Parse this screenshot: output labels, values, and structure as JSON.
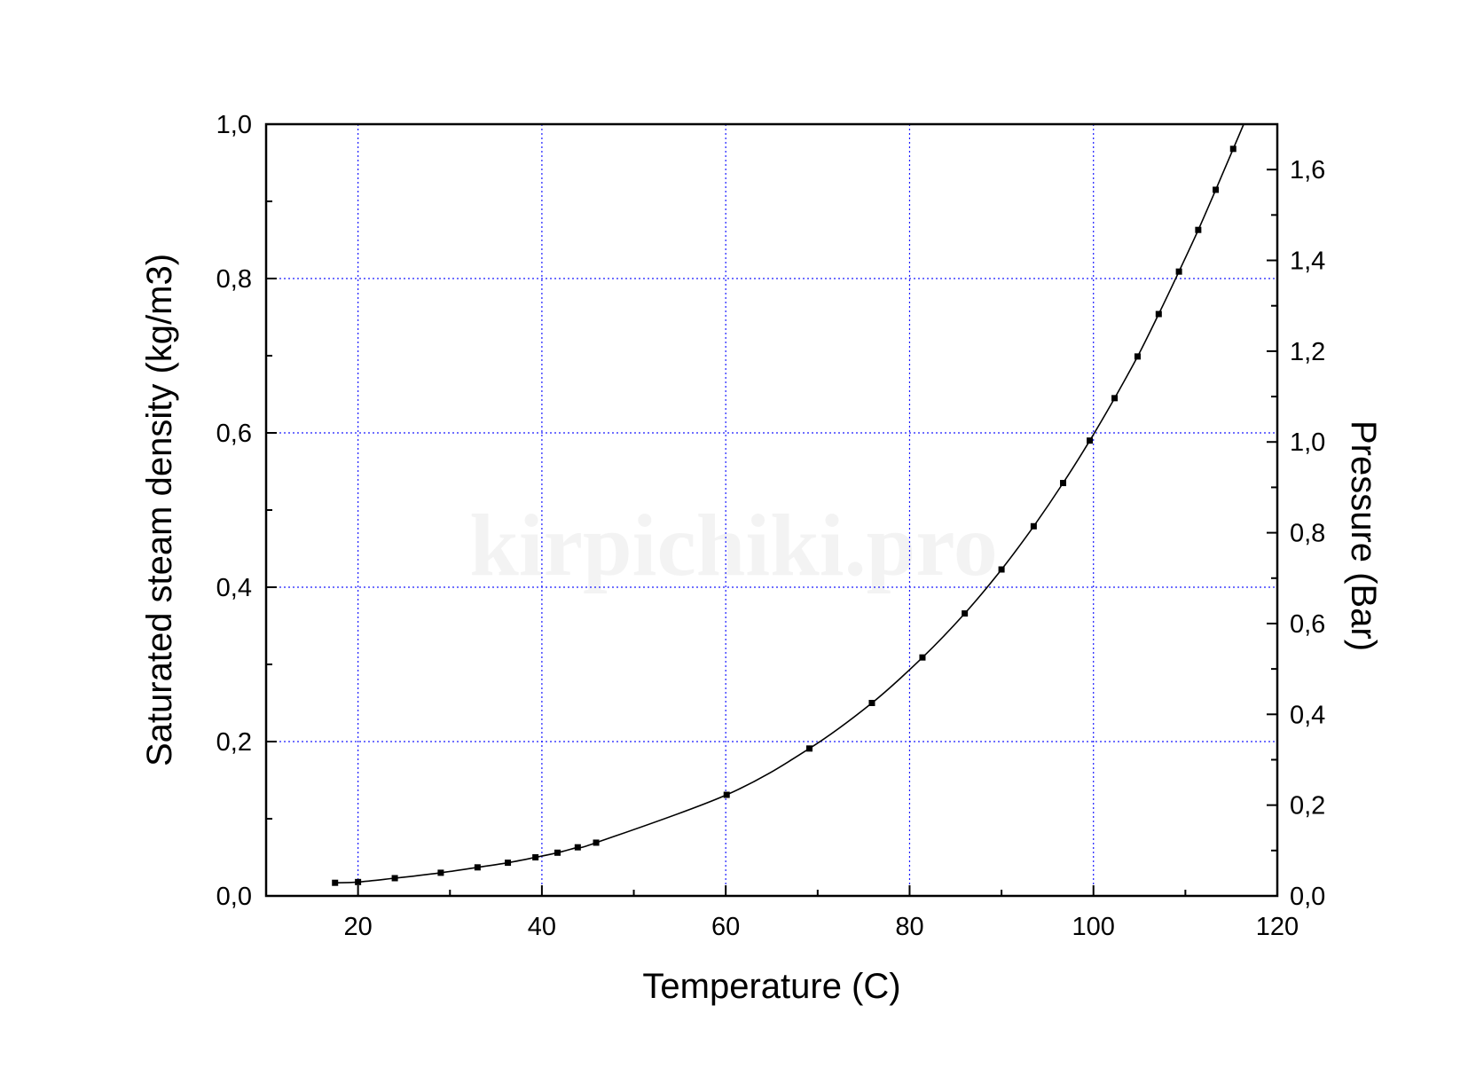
{
  "watermark": "kirpichiki.pro",
  "chart_data": {
    "type": "line",
    "xlabel": "Temperature (C)",
    "ylabel": "Saturated steam density (kg/m3)",
    "y2label": "Pressure (Bar)",
    "xlim": [
      10,
      120
    ],
    "ylim": [
      0,
      1.0
    ],
    "y2lim": [
      0,
      1.7
    ],
    "xticks": [
      20,
      40,
      60,
      80,
      100,
      120
    ],
    "yticks": [
      "0,0",
      "0,2",
      "0,4",
      "0,6",
      "0,8",
      "1,0"
    ],
    "y2ticks": [
      "0,0",
      "0,2",
      "0,4",
      "0,6",
      "0,8",
      "1,0",
      "1,2",
      "1,4",
      "1,6"
    ],
    "grid": true,
    "grid_color": "#1a1aff",
    "series": [
      {
        "color": "#000000",
        "marker": "square",
        "x": [
          17.5,
          20,
          24,
          29,
          33,
          36.3,
          39.3,
          41.7,
          43.9,
          45.9,
          60.1,
          69.1,
          75.9,
          81.4,
          86,
          90,
          93.5,
          96.7,
          99.6,
          102.3,
          104.8,
          107.1,
          109.3,
          111.4,
          113.3,
          115.2
        ],
        "y": [
          0.017,
          0.018,
          0.023,
          0.03,
          0.037,
          0.043,
          0.05,
          0.056,
          0.063,
          0.069,
          0.131,
          0.191,
          0.25,
          0.309,
          0.366,
          0.423,
          0.479,
          0.535,
          0.59,
          0.645,
          0.699,
          0.754,
          0.809,
          0.863,
          0.915,
          0.968
        ]
      }
    ]
  }
}
